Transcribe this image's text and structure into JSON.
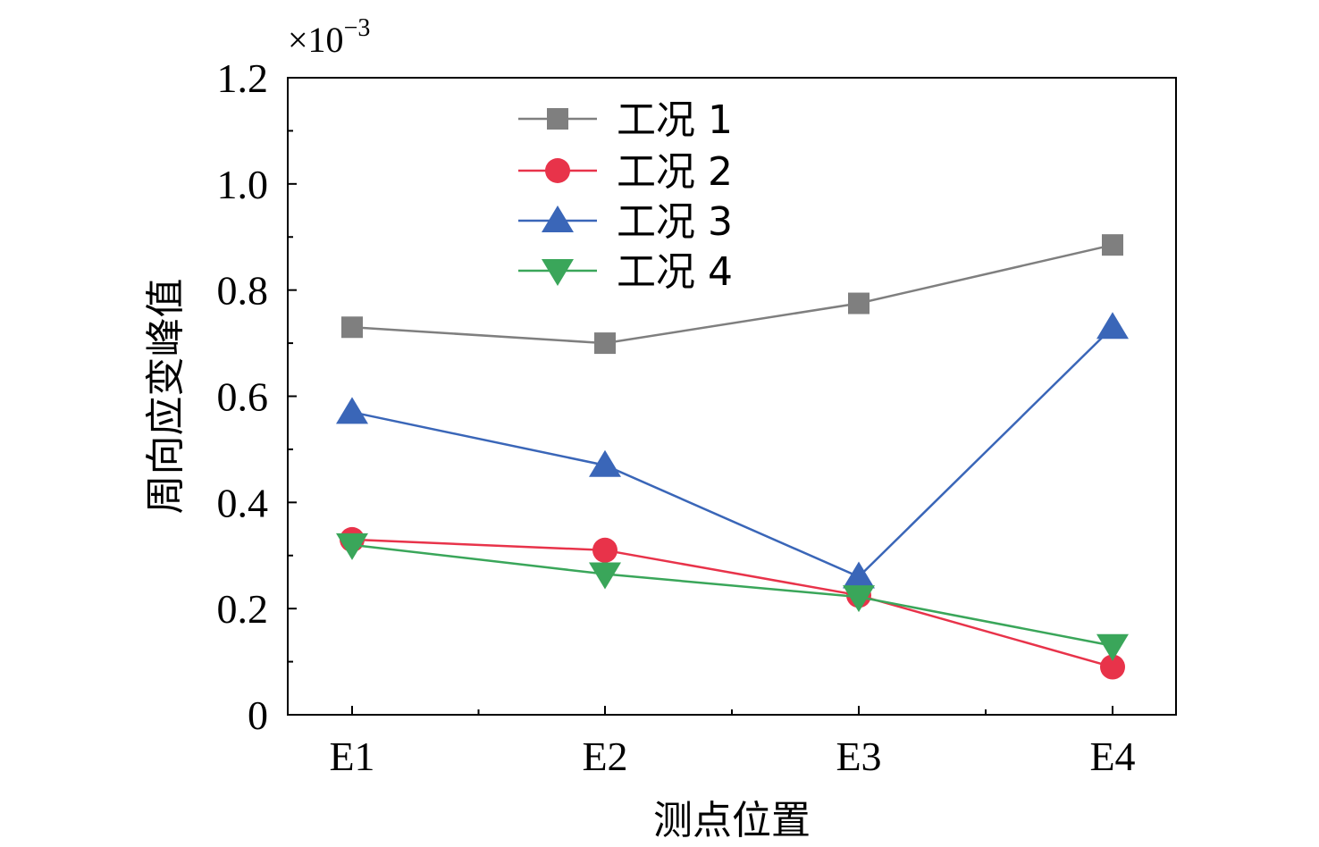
{
  "chart_data": {
    "type": "line",
    "categories": [
      "E1",
      "E2",
      "E3",
      "E4"
    ],
    "xlabel": "测点位置",
    "ylabel": "周向应变峰值",
    "y_multiplier": "×10",
    "y_multiplier_exp": "−3",
    "ylim": [
      0,
      1.2
    ],
    "yticks": [
      "0",
      "0.2",
      "0.4",
      "0.6",
      "0.8",
      "1.0",
      "1.2"
    ],
    "ytick_values": [
      0,
      0.2,
      0.4,
      0.6,
      0.8,
      1.0,
      1.2
    ],
    "grid": false,
    "legend_position": "top-center",
    "series": [
      {
        "name": "工况 1",
        "values": [
          0.73,
          0.7,
          0.775,
          0.885
        ],
        "color": "#7f7f7f",
        "marker": "square"
      },
      {
        "name": "工况 2",
        "values": [
          0.33,
          0.31,
          0.225,
          0.09
        ],
        "color": "#e8334a",
        "marker": "circle"
      },
      {
        "name": "工况 3",
        "values": [
          0.57,
          0.47,
          0.26,
          0.73
        ],
        "color": "#3a66b8",
        "marker": "triangle-up"
      },
      {
        "name": "工况 4",
        "values": [
          0.32,
          0.265,
          0.222,
          0.13
        ],
        "color": "#3aa65a",
        "marker": "triangle-down"
      }
    ]
  }
}
